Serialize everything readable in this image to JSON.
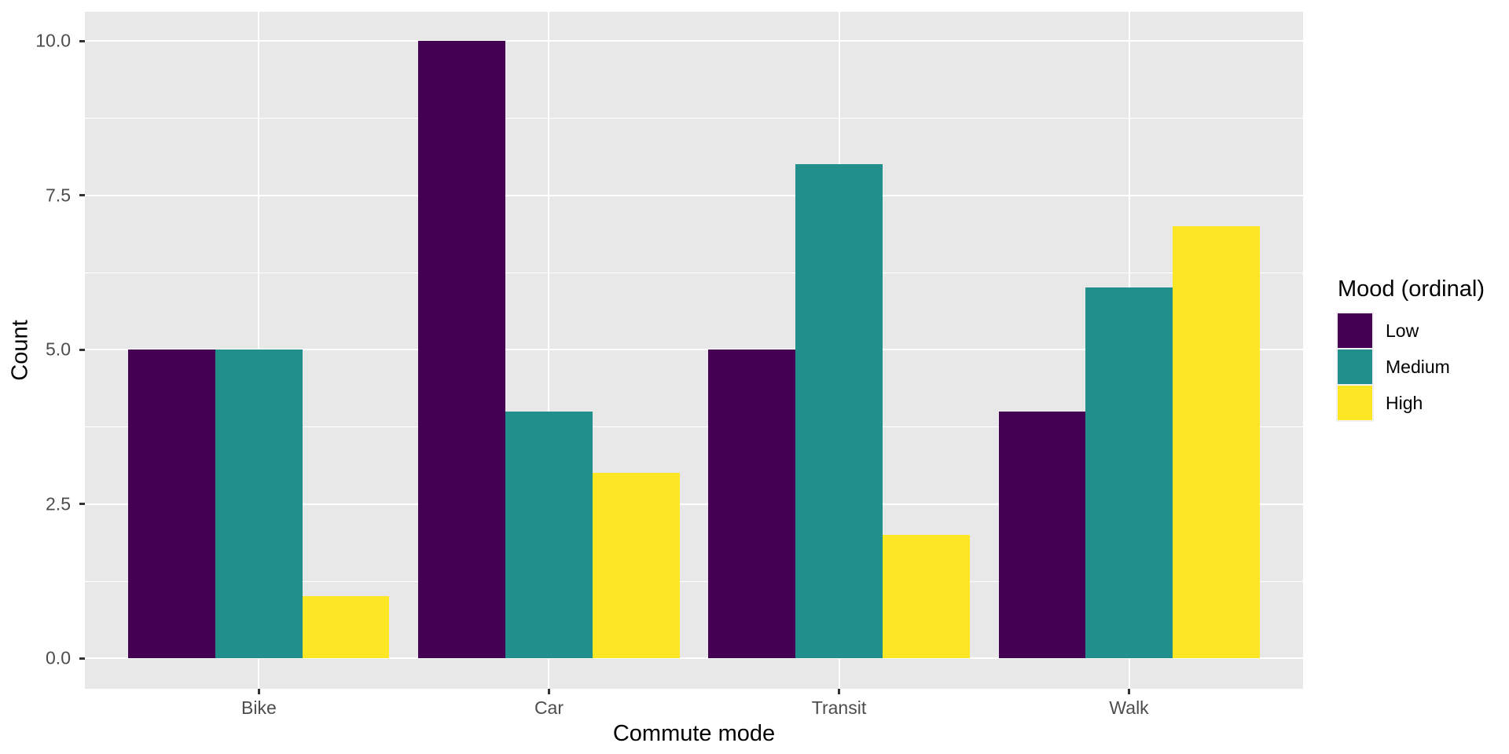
{
  "chart_data": {
    "type": "bar",
    "title": "",
    "categories": [
      "Bike",
      "Car",
      "Transit",
      "Walk"
    ],
    "series": [
      {
        "name": "Low",
        "color": "#440154",
        "values": [
          5,
          10,
          5,
          4
        ]
      },
      {
        "name": "Medium",
        "color": "#21908C",
        "values": [
          5,
          4,
          8,
          6
        ]
      },
      {
        "name": "High",
        "color": "#FDE725",
        "values": [
          1,
          3,
          2,
          7
        ]
      }
    ],
    "xlabel": "Commute mode",
    "ylabel": "Count",
    "legend_title": "Mood (ordinal)",
    "legend_position": "right",
    "ylim": [
      -0.5,
      10.5
    ],
    "yticks": [
      0,
      2.5,
      5,
      7.5,
      10
    ],
    "ytick_labels": [
      "0.0",
      "2.5",
      "5.0",
      "7.5",
      "10.0"
    ],
    "yminor": [
      1.25,
      3.75,
      6.25,
      8.75
    ],
    "grid": "on",
    "panel_bg": "#E8E8E8",
    "grid_color": "#FFFFFF",
    "tick_color": "#333333",
    "tick_text_color": "#4D4D4D",
    "bar_group_width_frac": 0.9
  }
}
